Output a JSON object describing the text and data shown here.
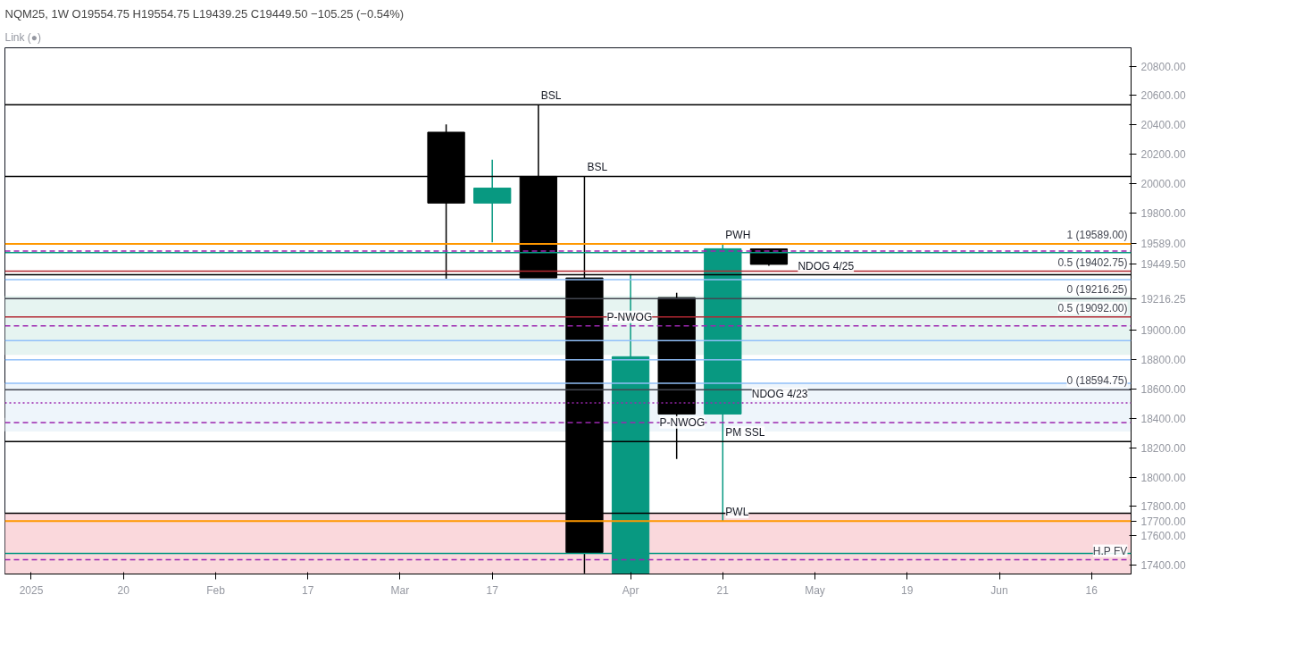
{
  "chart_data": {
    "type": "candlestick",
    "title": "NQM25, 1W  O19554.75  H19554.75  L19439.25  C19449.50  −105.25 (−0.54%)",
    "subtitle": "Link (●)",
    "x": [
      "2025-03-10",
      "2025-03-17",
      "2025-03-24",
      "2025-03-31",
      "2025-04-07",
      "2025-04-14",
      "2025-04-21",
      "2025-04-28"
    ],
    "ohlc": [
      [
        20350,
        20403,
        19352,
        19867
      ],
      [
        19867,
        20162,
        19599,
        19969
      ],
      [
        20049,
        20537,
        19357,
        19357
      ],
      [
        19357,
        20049,
        17345,
        17486
      ],
      [
        17345,
        19384,
        17345,
        18821
      ],
      [
        19223,
        19256,
        18124,
        18430
      ],
      [
        18430,
        19589,
        17700,
        19556
      ],
      [
        19554.75,
        19554.75,
        19439.25,
        19449.5
      ]
    ],
    "colors": [
      "#000000",
      "#089981",
      "#000000",
      "#000000",
      "#089981",
      "#000000",
      "#089981",
      "#000000"
    ],
    "xlim": [
      "2025-01-02",
      "2025-06-22"
    ],
    "xticks": [
      {
        "value": "2025-01-06",
        "label": "2025"
      },
      {
        "value": "2025-01-20",
        "label": "20"
      },
      {
        "value": "2025-02-03",
        "label": "Feb"
      },
      {
        "value": "2025-02-17",
        "label": "17"
      },
      {
        "value": "2025-03-03",
        "label": "Mar"
      },
      {
        "value": "2025-03-17",
        "label": "17"
      },
      {
        "value": "2025-04-07",
        "label": "Apr"
      },
      {
        "value": "2025-04-21",
        "label": "21"
      },
      {
        "value": "2025-05-05",
        "label": "May"
      },
      {
        "value": "2025-05-19",
        "label": "19"
      },
      {
        "value": "2025-06-02",
        "label": "Jun"
      },
      {
        "value": "2025-06-16",
        "label": "16"
      }
    ],
    "ylim": [
      17340,
      20925
    ],
    "yticks": [
      {
        "value": 17400,
        "label": "17400.00"
      },
      {
        "value": 17600,
        "label": "17600.00"
      },
      {
        "value": 17700,
        "label": "17700.00"
      },
      {
        "value": 17800,
        "label": "17800.00"
      },
      {
        "value": 18000,
        "label": "18000.00"
      },
      {
        "value": 18200,
        "label": "18200.00"
      },
      {
        "value": 18400,
        "label": "18400.00"
      },
      {
        "value": 18600,
        "label": "18600.00"
      },
      {
        "value": 18800,
        "label": "18800.00"
      },
      {
        "value": 19000,
        "label": "19000.00"
      },
      {
        "value": 19216.25,
        "label": "19216.25"
      },
      {
        "value": 19449.5,
        "label": "19449.50"
      },
      {
        "value": 19589,
        "label": "19589.00"
      },
      {
        "value": 19800,
        "label": "19800.00"
      },
      {
        "value": 20000,
        "label": "20000.00"
      },
      {
        "value": 20200,
        "label": "20200.00"
      },
      {
        "value": 20400,
        "label": "20400.00"
      },
      {
        "value": 20600,
        "label": "20600.00"
      },
      {
        "value": 20800,
        "label": "20800.00"
      }
    ],
    "grid": false,
    "bands": [
      {
        "axis": "y",
        "from": 17340,
        "to": 17754,
        "color": "#fad8dc"
      },
      {
        "axis": "y",
        "from": 18832,
        "to": 19234,
        "color": "#e6f4f1"
      },
      {
        "axis": "y",
        "from": 18312,
        "to": 18403,
        "color": "#e6f4f1"
      },
      {
        "axis": "y",
        "from": 18312,
        "to": 18640,
        "color": "#eef5fb"
      }
    ],
    "ref_lines": [
      {
        "axis": "y",
        "value": 20537,
        "color": "#000000"
      },
      {
        "axis": "y",
        "value": 20049,
        "color": "#000000"
      },
      {
        "axis": "y",
        "value": 19589,
        "color": "#ff9800"
      },
      {
        "axis": "y",
        "value": 19540,
        "color": "#9c27b0",
        "line_style": "dashed"
      },
      {
        "axis": "y",
        "value": 19529,
        "color": "#089981"
      },
      {
        "axis": "y",
        "value": 19402.75,
        "color": "#b22833"
      },
      {
        "axis": "y",
        "value": 19379,
        "color": "#000000"
      },
      {
        "axis": "y",
        "value": 19345,
        "color": "#90bff9"
      },
      {
        "axis": "y",
        "value": 19216.25,
        "color": "#434651"
      },
      {
        "axis": "y",
        "value": 19092,
        "color": "#b22833"
      },
      {
        "axis": "y",
        "value": 19030,
        "color": "#9c27b0",
        "line_style": "dashed"
      },
      {
        "axis": "y",
        "value": 18930,
        "color": "#90bff9"
      },
      {
        "axis": "y",
        "value": 18800,
        "color": "#90bff9"
      },
      {
        "axis": "y",
        "value": 18640,
        "color": "#90bff9"
      },
      {
        "axis": "y",
        "value": 18594.75,
        "color": "#434651"
      },
      {
        "axis": "y",
        "value": 18505,
        "color": "#9c27b0",
        "line_style": "dotted"
      },
      {
        "axis": "y",
        "value": 18371,
        "color": "#9c27b0",
        "line_style": "dashed"
      },
      {
        "axis": "y",
        "value": 18242,
        "color": "#000000"
      },
      {
        "axis": "y",
        "value": 17754,
        "color": "#000000"
      },
      {
        "axis": "y",
        "value": 17700,
        "color": "#ff9800"
      },
      {
        "axis": "y",
        "value": 17480,
        "color": "#089981"
      },
      {
        "axis": "y",
        "value": 17437,
        "color": "#9c27b0",
        "line_style": "dashed"
      }
    ],
    "annotations": [
      {
        "text": "BSL",
        "x": "2025-03-24",
        "y": 20537
      },
      {
        "text": "BSL",
        "x": "2025-03-31",
        "y": 20049
      },
      {
        "text": "PWH",
        "x": "2025-04-21",
        "y": 19589
      },
      {
        "text": "1 (19589.00)",
        "y": 19589
      },
      {
        "text": "0.5 (19402.75)",
        "y": 19402.75
      },
      {
        "text": "NDOG 4/25",
        "x": "2025-05-02",
        "y": 19379
      },
      {
        "text": "0 (19216.25)",
        "y": 19216.25
      },
      {
        "text": "0.5 (19092.00)",
        "y": 19092
      },
      {
        "text": "P-NWOG",
        "x": "2025-04-03",
        "y": 19030
      },
      {
        "text": "0 (18594.75)",
        "y": 18594.75
      },
      {
        "text": "NDOG 4/23",
        "x": "2025-04-25",
        "y": 18505
      },
      {
        "text": "P-NWOG",
        "x": "2025-04-11",
        "y": 18312
      },
      {
        "text": "PM SSL",
        "x": "2025-04-21",
        "y": 18242
      },
      {
        "text": "PWL",
        "x": "2025-04-21",
        "y": 17700
      },
      {
        "text": "H.P FV",
        "y": 17437
      }
    ]
  }
}
